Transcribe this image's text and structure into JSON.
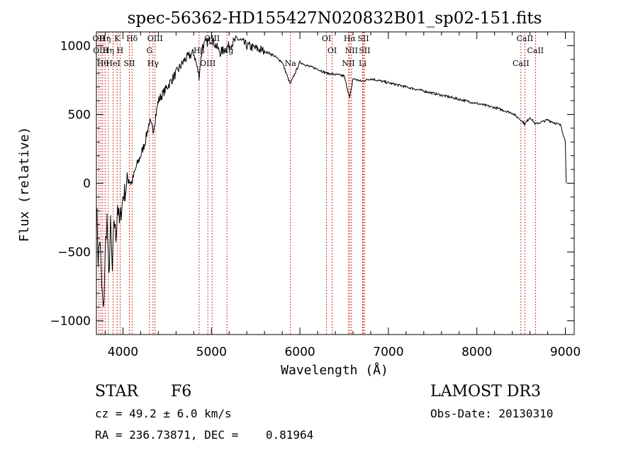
{
  "chart_data": {
    "type": "line",
    "title": "spec-56362-HD155427N020832B01_sp02-151.fits",
    "xlabel": "Wavelength (Å)",
    "ylabel": "Flux (relative)",
    "xlim": [
      3700,
      9100
    ],
    "ylim": [
      -1100,
      1100
    ],
    "xticks": [
      4000,
      5000,
      6000,
      7000,
      8000,
      9000
    ],
    "yticks": [
      -1000,
      -500,
      0,
      500,
      1000
    ],
    "grid": false,
    "series": [
      {
        "name": "flux",
        "x": [
          3700,
          3720,
          3740,
          3760,
          3780,
          3800,
          3820,
          3840,
          3860,
          3880,
          3900,
          3920,
          3940,
          3960,
          3980,
          4000,
          4030,
          4060,
          4100,
          4150,
          4200,
          4250,
          4300,
          4340,
          4400,
          4500,
          4600,
          4700,
          4800,
          4860,
          4900,
          5000,
          5100,
          5200,
          5300,
          5400,
          5500,
          5600,
          5700,
          5800,
          5890,
          6000,
          6100,
          6200,
          6300,
          6400,
          6500,
          6563,
          6600,
          6700,
          6800,
          7000,
          7200,
          7400,
          7600,
          7800,
          8000,
          8200,
          8400,
          8498,
          8542,
          8600,
          8662,
          8800,
          8950,
          9000,
          9010
        ],
        "y": [
          -100,
          -550,
          -400,
          -750,
          -950,
          -500,
          -250,
          -700,
          -300,
          -650,
          -250,
          -400,
          -150,
          -300,
          -200,
          -100,
          -50,
          50,
          0,
          120,
          200,
          300,
          450,
          380,
          600,
          700,
          800,
          900,
          950,
          780,
          1000,
          1050,
          950,
          1000,
          1050,
          1000,
          980,
          960,
          930,
          880,
          720,
          880,
          850,
          830,
          800,
          790,
          780,
          620,
          760,
          740,
          760,
          730,
          700,
          670,
          640,
          610,
          580,
          550,
          510,
          460,
          430,
          480,
          430,
          460,
          420,
          300,
          0
        ]
      }
    ],
    "lines": [
      {
        "x": 3727,
        "label": "OII"
      },
      {
        "x": 3750,
        "label": "OIII"
      },
      {
        "x": 3771,
        "label": "Hθ"
      },
      {
        "x": 3798,
        "label": "Hη"
      },
      {
        "x": 3835,
        "label": "Hη"
      },
      {
        "x": 3889,
        "label": "HeI"
      },
      {
        "x": 3934,
        "label": "K"
      },
      {
        "x": 3968,
        "label": "H"
      },
      {
        "x": 4072,
        "label": "SII"
      },
      {
        "x": 4102,
        "label": "Hδ"
      },
      {
        "x": 4300,
        "label": "G"
      },
      {
        "x": 4340,
        "label": "Hγ"
      },
      {
        "x": 4363,
        "label": "OIII"
      },
      {
        "x": 4861,
        "label": "Hβ"
      },
      {
        "x": 4959,
        "label": "OIII"
      },
      {
        "x": 5007,
        "label": "OIII"
      },
      {
        "x": 5175,
        "label": "Mg"
      },
      {
        "x": 5893,
        "label": "Na"
      },
      {
        "x": 6300,
        "label": "OI"
      },
      {
        "x": 6364,
        "label": "OI"
      },
      {
        "x": 6548,
        "label": "NII"
      },
      {
        "x": 6563,
        "label": "Hα"
      },
      {
        "x": 6583,
        "label": "NII"
      },
      {
        "x": 6708,
        "label": "Li"
      },
      {
        "x": 6716,
        "label": "SII"
      },
      {
        "x": 6731,
        "label": "SII"
      },
      {
        "x": 8498,
        "label": "CaII"
      },
      {
        "x": 8542,
        "label": "CaII"
      },
      {
        "x": 8662,
        "label": "CaII"
      }
    ],
    "line_color": "#000000",
    "marker_color": "#cc0000"
  },
  "info": {
    "class": "STAR",
    "subclass": "F6",
    "survey": "LAMOST DR3",
    "redshift": "cz = 49.2 ± 6.0 km/s",
    "obs_date": "Obs-Date: 20130310",
    "coords": "RA = 236.73871, DEC =    0.81964"
  }
}
